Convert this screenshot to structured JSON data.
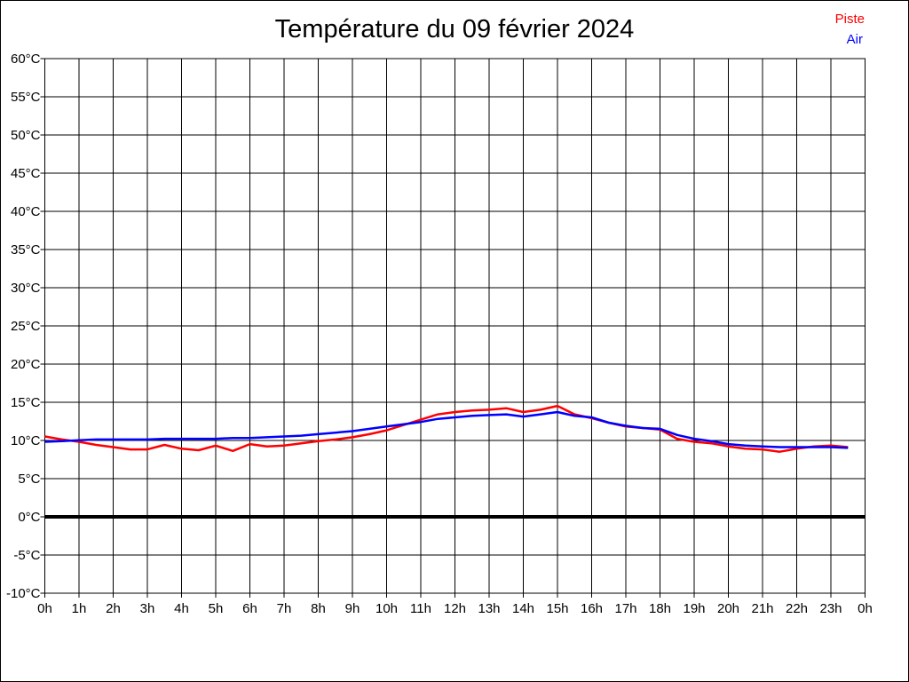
{
  "title": "Température du 09 février 2024",
  "legend": {
    "piste_label": "Piste",
    "air_label": "Air"
  },
  "colors": {
    "piste": "#ff0000",
    "air": "#0000ff",
    "grid": "#000000",
    "text": "#000000",
    "background": "#ffffff"
  },
  "chart_data": {
    "type": "line",
    "title": "Température du 09 février 2024",
    "xlabel": "",
    "ylabel": "",
    "xlim": [
      0,
      24
    ],
    "ylim": [
      -10,
      60
    ],
    "grid": true,
    "zero_line_value": 0,
    "legend_position": "top-right",
    "x_tick_hours": [
      0,
      1,
      2,
      3,
      4,
      5,
      6,
      7,
      8,
      9,
      10,
      11,
      12,
      13,
      14,
      15,
      16,
      17,
      18,
      19,
      20,
      21,
      22,
      23,
      24
    ],
    "x_tick_labels": [
      "0h",
      "1h",
      "2h",
      "3h",
      "4h",
      "5h",
      "6h",
      "7h",
      "8h",
      "9h",
      "10h",
      "11h",
      "12h",
      "13h",
      "14h",
      "15h",
      "16h",
      "17h",
      "18h",
      "19h",
      "20h",
      "21h",
      "22h",
      "23h",
      "0h"
    ],
    "y_tick_values": [
      60,
      55,
      50,
      45,
      40,
      35,
      30,
      25,
      20,
      15,
      10,
      5,
      0,
      -5,
      -10
    ],
    "y_tick_labels": [
      "60°C",
      "55°C",
      "50°C",
      "45°C",
      "40°C",
      "35°C",
      "30°C",
      "25°C",
      "20°C",
      "15°C",
      "10°C",
      "5°C",
      "0°C",
      "-5°C",
      "-10°C"
    ],
    "x": [
      0,
      0.5,
      1,
      1.5,
      2,
      2.5,
      3,
      3.5,
      4,
      4.5,
      5,
      5.5,
      6,
      6.5,
      7,
      7.5,
      8,
      8.5,
      9,
      9.5,
      10,
      10.5,
      11,
      11.5,
      12,
      12.5,
      13,
      13.5,
      14,
      14.5,
      15,
      15.5,
      16,
      16.5,
      17,
      17.5,
      18,
      18.5,
      19,
      19.5,
      20,
      20.5,
      21,
      21.5,
      22,
      22.5,
      23,
      23.5
    ],
    "series": [
      {
        "name": "Piste",
        "color": "#ff0000",
        "values": [
          10.5,
          10.1,
          9.8,
          9.4,
          9.1,
          8.8,
          8.8,
          9.4,
          8.9,
          8.7,
          9.3,
          8.6,
          9.5,
          9.2,
          9.3,
          9.6,
          9.9,
          10.1,
          10.4,
          10.8,
          11.3,
          12.0,
          12.7,
          13.4,
          13.7,
          13.9,
          14.0,
          14.2,
          13.7,
          14.0,
          14.5,
          13.4,
          12.9,
          12.3,
          11.8,
          11.6,
          11.4,
          10.2,
          9.8,
          9.6,
          9.2,
          8.9,
          8.8,
          8.5,
          8.9,
          9.2,
          9.3,
          9.1
        ]
      },
      {
        "name": "Air",
        "color": "#0000ff",
        "values": [
          9.8,
          9.9,
          10.0,
          10.1,
          10.1,
          10.1,
          10.1,
          10.2,
          10.2,
          10.2,
          10.2,
          10.3,
          10.3,
          10.4,
          10.5,
          10.6,
          10.8,
          11.0,
          11.2,
          11.5,
          11.8,
          12.1,
          12.4,
          12.8,
          13.0,
          13.2,
          13.3,
          13.4,
          13.1,
          13.4,
          13.7,
          13.2,
          13.0,
          12.3,
          11.9,
          11.6,
          11.5,
          10.7,
          10.2,
          9.9,
          9.5,
          9.3,
          9.2,
          9.1,
          9.1,
          9.1,
          9.1,
          9.0
        ]
      }
    ]
  }
}
